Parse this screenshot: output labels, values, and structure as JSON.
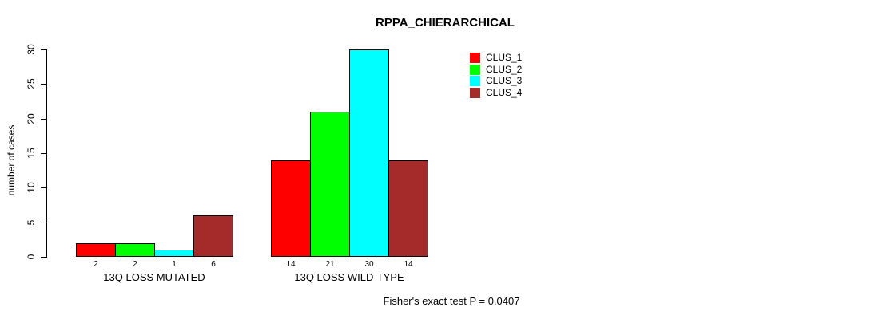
{
  "chart_data": {
    "type": "bar",
    "title": "RPPA_CHIERARCHICAL",
    "xlabel": "",
    "ylabel": "number of cases",
    "ylim": [
      0,
      30
    ],
    "yticks": [
      0,
      5,
      10,
      15,
      20,
      25,
      30
    ],
    "grid": false,
    "legend_position": "top-right",
    "categories": [
      "13Q LOSS MUTATED",
      "13Q LOSS WILD-TYPE"
    ],
    "series": [
      {
        "name": "CLUS_1",
        "color": "#FF0000",
        "values": [
          2,
          14
        ]
      },
      {
        "name": "CLUS_2",
        "color": "#00FF00",
        "values": [
          2,
          21
        ]
      },
      {
        "name": "CLUS_3",
        "color": "#00FFFF",
        "values": [
          1,
          30
        ]
      },
      {
        "name": "CLUS_4",
        "color": "#A52A2A",
        "values": [
          6,
          14
        ]
      }
    ],
    "bar_value_labels": [
      [
        2,
        2,
        1,
        6
      ],
      [
        14,
        21,
        30,
        14
      ]
    ],
    "annotation": "Fisher's exact test P = 0.0407"
  }
}
